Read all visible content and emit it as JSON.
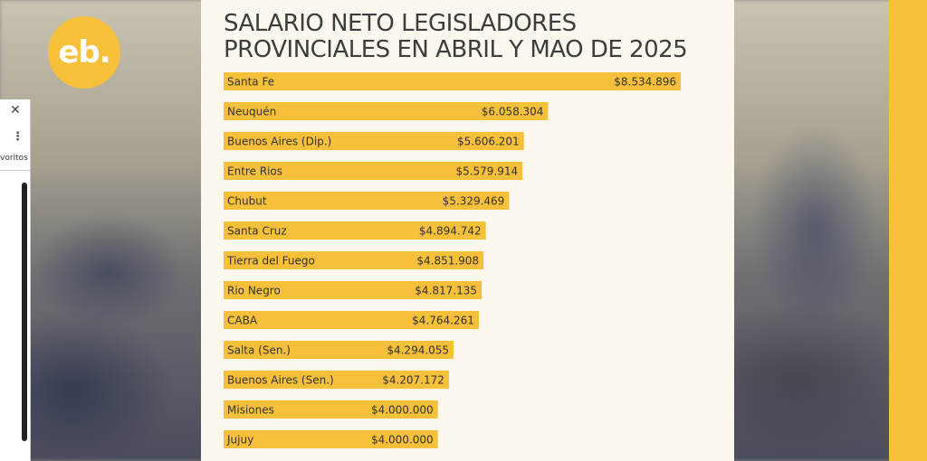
{
  "logo": {
    "text": "eb."
  },
  "browser_popup": {
    "close_icon": "close-icon",
    "menu_icon": "kebab-menu-icon",
    "favorites_label": "voritos"
  },
  "colors": {
    "accent": "#f6c03b",
    "panel": "#fcf8ee",
    "text": "#3d3d3d"
  },
  "chart_data": {
    "type": "bar",
    "orientation": "horizontal",
    "title": "SALARIO NETO LEGISLADORES PROVINCIALES EN ABRIL Y MAO DE 2025",
    "xlabel": "",
    "ylabel": "",
    "xlim": [
      0,
      8534896
    ],
    "categories": [
      "Santa Fe",
      "Neuquén",
      "Buenos Aires (Dip.)",
      "Entre Rios",
      "Chubut",
      "Santa Cruz",
      "Tierra del Fuego",
      "Rio Negro",
      "CABA",
      "Salta (Sen.)",
      "Buenos Aires (Sen.)",
      "Misiones",
      "Jujuy"
    ],
    "values": [
      8534896,
      6058304,
      5606201,
      5579914,
      5329469,
      4894742,
      4851908,
      4817135,
      4764261,
      4294055,
      4207172,
      4000000,
      4000000
    ],
    "value_labels": [
      "$8.534.896",
      "$6.058.304",
      "$5.606.201",
      "$5.579.914",
      "$5.329.469",
      "$4.894.742",
      "$4.851.908",
      "$4.817.135",
      "$4.764.261",
      "$4.294.055",
      "$4.207.172",
      "$4.000.000",
      "$4.000.000"
    ]
  }
}
